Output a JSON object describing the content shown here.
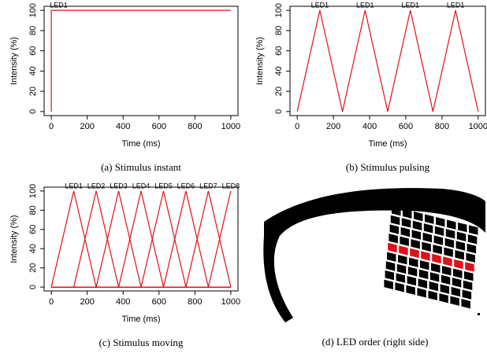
{
  "chart_data": [
    {
      "type": "line",
      "caption": "(a) Stimulus instant",
      "xlabel": "Time (ms)",
      "ylabel": "Intensity (%)",
      "x": [
        0,
        0,
        1000
      ],
      "series": [
        {
          "name": "LED1",
          "color": "#e0101a",
          "values": [
            0,
            100,
            100
          ]
        }
      ],
      "xlim": [
        -40,
        1040
      ],
      "ylim": [
        -4,
        104
      ],
      "xticks": [
        0,
        200,
        400,
        600,
        800,
        1000
      ],
      "yticks": [
        0,
        20,
        40,
        60,
        80,
        100
      ]
    },
    {
      "type": "line",
      "caption": "(b) Stimulus pulsing",
      "xlabel": "Time (ms)",
      "ylabel": "Intensity (%)",
      "x": [
        0,
        125,
        250,
        375,
        500,
        625,
        750,
        875,
        1000
      ],
      "series": [
        {
          "name": "LED1",
          "color": "#e0101a",
          "values": [
            0,
            100,
            0,
            100,
            0,
            100,
            0,
            100,
            0
          ]
        }
      ],
      "xlim": [
        -40,
        1040
      ],
      "ylim": [
        -4,
        104
      ],
      "xticks": [
        0,
        200,
        400,
        600,
        800,
        1000
      ],
      "yticks": [
        0,
        20,
        40,
        60,
        80,
        100
      ]
    },
    {
      "type": "line",
      "caption": "(c) Stimulus moving",
      "xlabel": "Time (ms)",
      "ylabel": "Intensity (%)",
      "x": [
        0,
        125,
        250,
        375,
        500,
        625,
        750,
        875,
        1000
      ],
      "series": [
        {
          "name": "LED1",
          "color": "#e0101a",
          "values": [
            0,
            100,
            0,
            0,
            0,
            0,
            0,
            0,
            0
          ]
        },
        {
          "name": "LED2",
          "color": "#e0101a",
          "values": [
            0,
            0,
            100,
            0,
            0,
            0,
            0,
            0,
            0
          ]
        },
        {
          "name": "LED3",
          "color": "#e0101a",
          "values": [
            0,
            0,
            0,
            100,
            0,
            0,
            0,
            0,
            0
          ]
        },
        {
          "name": "LED4",
          "color": "#e0101a",
          "values": [
            0,
            0,
            0,
            0,
            100,
            0,
            0,
            0,
            0
          ]
        },
        {
          "name": "LED5",
          "color": "#e0101a",
          "values": [
            0,
            0,
            0,
            0,
            0,
            100,
            0,
            0,
            0
          ]
        },
        {
          "name": "LED6",
          "color": "#e0101a",
          "values": [
            0,
            0,
            0,
            0,
            0,
            0,
            100,
            0,
            0
          ]
        },
        {
          "name": "LED7",
          "color": "#e0101a",
          "values": [
            0,
            0,
            0,
            0,
            0,
            0,
            0,
            100,
            0
          ]
        },
        {
          "name": "LED8",
          "color": "#e0101a",
          "values": [
            0,
            0,
            0,
            0,
            0,
            0,
            0,
            0,
            100
          ]
        }
      ],
      "xlim": [
        -40,
        1040
      ],
      "ylim": [
        -4,
        104
      ],
      "xticks": [
        0,
        200,
        400,
        600,
        800,
        1000
      ],
      "yticks": [
        0,
        20,
        40,
        60,
        80,
        100
      ]
    }
  ],
  "image": {
    "caption": "(d) LED order (right side)"
  }
}
